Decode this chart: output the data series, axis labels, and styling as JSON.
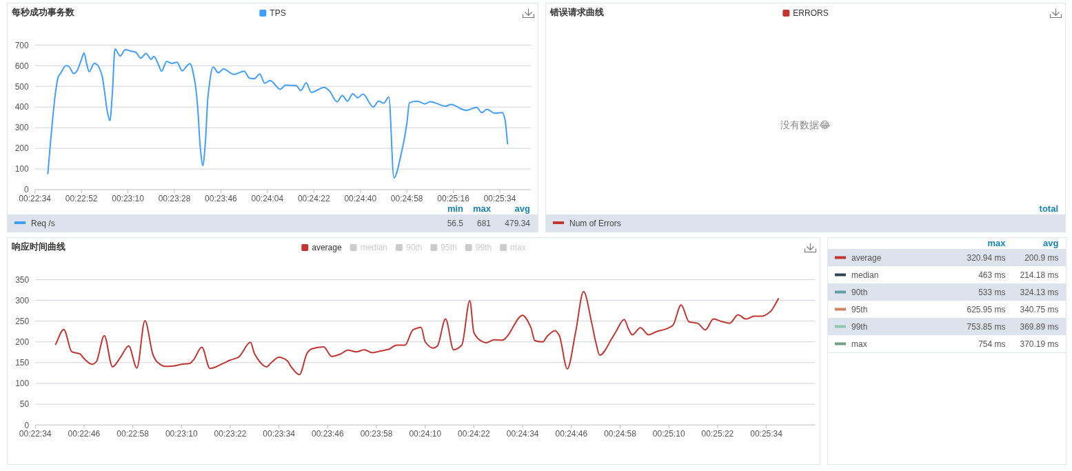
{
  "chart_data": [
    {
      "type": "line",
      "title": "每秒成功事务数",
      "legend": "top",
      "grid": "y",
      "xlim": [
        0.376111,
        0.429444
      ],
      "xticks": [
        {
          "value": 0.376111,
          "label": "00:22:34"
        },
        {
          "value": 0.381111,
          "label": "00:22:52"
        },
        {
          "value": 0.386111,
          "label": "00:23:10"
        },
        {
          "value": 0.391111,
          "label": "00:23:28"
        },
        {
          "value": 0.396111,
          "label": "00:23:46"
        },
        {
          "value": 0.401111,
          "label": "00:24:04"
        },
        {
          "value": 0.406111,
          "label": "00:24:22"
        },
        {
          "value": 0.411111,
          "label": "00:24:40"
        },
        {
          "value": 0.416111,
          "label": "00:24:58"
        },
        {
          "value": 0.421111,
          "label": "00:25:16"
        },
        {
          "value": 0.426111,
          "label": "00:25:34"
        }
      ],
      "ylim": [
        0,
        700
      ],
      "yticks": [
        0,
        100,
        200,
        300,
        400,
        500,
        600,
        700
      ],
      "series": [
        {
          "name": "TPS",
          "color": "#409eff",
          "x": [
            0.3775,
            0.37778,
            0.37806,
            0.37833,
            0.37861,
            0.37889,
            0.37944,
            0.37972,
            0.38028,
            0.38056,
            0.38111,
            0.38139,
            0.38167,
            0.38194,
            0.3825,
            0.38278,
            0.38333,
            0.38361,
            0.38389,
            0.38417,
            0.38444,
            0.38472,
            0.38528,
            0.38583,
            0.38639,
            0.38694,
            0.3875,
            0.38806,
            0.38861,
            0.38889,
            0.38944,
            0.38972,
            0.39028,
            0.39083,
            0.39139,
            0.39194,
            0.3925,
            0.39278,
            0.39333,
            0.39361,
            0.39389,
            0.39417,
            0.39444,
            0.39472,
            0.39528,
            0.39583,
            0.39639,
            0.3975,
            0.39861,
            0.39917,
            0.39972,
            0.40028,
            0.40083,
            0.40139,
            0.4025,
            0.40306,
            0.40417,
            0.40472,
            0.40528,
            0.40583,
            0.40722,
            0.40778,
            0.40861,
            0.40917,
            0.40972,
            0.41028,
            0.41083,
            0.41139,
            0.4125,
            0.41306,
            0.41361,
            0.41417,
            0.41472,
            0.41556,
            0.41611,
            0.41639,
            0.41722,
            0.41806,
            0.41861,
            0.42028,
            0.42083,
            0.4225,
            0.42361,
            0.42417,
            0.42472,
            0.42556,
            0.42639,
            0.42667,
            0.42694
          ],
          "values": [
            78,
            228,
            363,
            473,
            545,
            565,
            600,
            598,
            562,
            570,
            630,
            662,
            610,
            571,
            612,
            606,
            551,
            470,
            380,
            334,
            470,
            681,
            647,
            678,
            671,
            665,
            637,
            659,
            631,
            645,
            600,
            573,
            621,
            611,
            617,
            575,
            601,
            610,
            517,
            400,
            206,
            117,
            228,
            450,
            593,
            566,
            584,
            558,
            573,
            540,
            537,
            560,
            515,
            528,
            486,
            506,
            504,
            480,
            517,
            471,
            495,
            478,
            425,
            456,
            428,
            464,
            445,
            462,
            400,
            428,
            419,
            448,
            57,
            185,
            320,
            420,
            428,
            415,
            426,
            404,
            412,
            384,
            398,
            373,
            389,
            370,
            373,
            339,
            222
          ]
        }
      ],
      "annotations": [
        "min",
        "max",
        "avg",
        "Req /s",
        "56.5",
        "681",
        "479.34"
      ]
    },
    {
      "type": "other",
      "title": "错误请求曲线",
      "legend": "top",
      "series": [
        {
          "name": "ERRORS",
          "color": "#c23531"
        }
      ],
      "annotations": [
        "没有数据😂",
        "total",
        "Num of Errors"
      ]
    },
    {
      "type": "line",
      "title": "响应时间曲线",
      "legend": "top",
      "grid": "y",
      "xlim": [
        0.376111,
        0.429444
      ],
      "xticks": [
        {
          "value": 0.376111,
          "label": "00:22:34"
        },
        {
          "value": 0.379444,
          "label": "00:22:46"
        },
        {
          "value": 0.382778,
          "label": "00:22:58"
        },
        {
          "value": 0.386111,
          "label": "00:23:10"
        },
        {
          "value": 0.389444,
          "label": "00:23:22"
        },
        {
          "value": 0.392778,
          "label": "00:23:34"
        },
        {
          "value": 0.396111,
          "label": "00:23:46"
        },
        {
          "value": 0.399444,
          "label": "00:23:58"
        },
        {
          "value": 0.402778,
          "label": "00:24:10"
        },
        {
          "value": 0.406111,
          "label": "00:24:22"
        },
        {
          "value": 0.409444,
          "label": "00:24:34"
        },
        {
          "value": 0.412778,
          "label": "00:24:46"
        },
        {
          "value": 0.416111,
          "label": "00:24:58"
        },
        {
          "value": 0.419444,
          "label": "00:25:10"
        },
        {
          "value": 0.422778,
          "label": "00:25:22"
        },
        {
          "value": 0.426111,
          "label": "00:25:34"
        }
      ],
      "ylim": [
        0,
        350
      ],
      "yticks": [
        0,
        50,
        100,
        150,
        200,
        250,
        300,
        350
      ],
      "series": [
        {
          "name": "average",
          "color": "#c23531",
          "x": [
            0.3775,
            0.37806,
            0.37861,
            0.37917,
            0.37944,
            0.38,
            0.38028,
            0.38083,
            0.38139,
            0.38194,
            0.3825,
            0.38306,
            0.38361,
            0.38417,
            0.38444,
            0.385,
            0.38556,
            0.38611,
            0.38667,
            0.38694,
            0.3875,
            0.38806,
            0.38889,
            0.38944,
            0.39,
            0.39083,
            0.39111,
            0.39194,
            0.39222,
            0.39278,
            0.39333,
            0.39361,
            0.39417,
            0.39472,
            0.395,
            0.39583,
            0.39639,
            0.39694,
            0.3975,
            0.39806,
            0.39861,
            0.39917,
            0.39972,
            0.40028,
            0.40083,
            0.40139,
            0.40194,
            0.4025,
            0.40278,
            0.40333,
            0.40361,
            0.40417,
            0.40472,
            0.40528,
            0.40583,
            0.40611,
            0.40667,
            0.40694,
            0.4075,
            0.40806,
            0.40833,
            0.40944,
            0.41,
            0.41028,
            0.41083,
            0.41111,
            0.41167,
            0.41194,
            0.4125,
            0.41306,
            0.41361,
            0.41417,
            0.41444,
            0.41472,
            0.41556,
            0.41583,
            0.41639,
            0.41667,
            0.41694,
            0.4175,
            0.41806,
            0.41861,
            0.41917,
            0.41972,
            0.42028,
            0.42083,
            0.42139,
            0.42194,
            0.4225,
            0.42306,
            0.42361,
            0.42417,
            0.42472,
            0.42528,
            0.42583,
            0.42639,
            0.42694
          ],
          "values": [
            194,
            230,
            176,
            171,
            160,
            146,
            152,
            215,
            140,
            163,
            190,
            137,
            251,
            168,
            152,
            141,
            142,
            146,
            148,
            157,
            187,
            136,
            147,
            156,
            163,
            199,
            171,
            140,
            149,
            163,
            155,
            140,
            121,
            174,
            183,
            188,
            165,
            170,
            180,
            176,
            181,
            174,
            178,
            182,
            192,
            192,
            229,
            235,
            200,
            185,
            190,
            255,
            181,
            192,
            299,
            222,
            201,
            198,
            205,
            204,
            211,
            264,
            235,
            203,
            200,
            213,
            227,
            216,
            135,
            222,
            321,
            245,
            200,
            168,
            209,
            225,
            254,
            232,
            217,
            234,
            217,
            225,
            230,
            240,
            289,
            248,
            245,
            229,
            255,
            249,
            245,
            265,
            255,
            262,
            262,
            273,
            304
          ]
        },
        {
          "name": "median",
          "color": "#cccccc"
        },
        {
          "name": "90th",
          "color": "#cccccc"
        },
        {
          "name": "95th",
          "color": "#cccccc"
        },
        {
          "name": "99th",
          "color": "#cccccc"
        },
        {
          "name": "max",
          "color": "#cccccc"
        }
      ]
    },
    {
      "type": "other",
      "categories": [
        "average",
        "median",
        "90th",
        "95th",
        "99th",
        "max"
      ],
      "colors": [
        "#c23531",
        "#2f4554",
        "#61a0a8",
        "#d48265",
        "#91c7ae",
        "#749f83"
      ],
      "annotations": [
        "max",
        "avg",
        "320.94 ms",
        "200.9 ms",
        "463 ms",
        "214.18 ms",
        "533 ms",
        "324.13 ms",
        "625.95 ms",
        "340.75 ms",
        "753.85 ms",
        "369.89 ms",
        "754 ms",
        "370.19 ms"
      ]
    }
  ]
}
